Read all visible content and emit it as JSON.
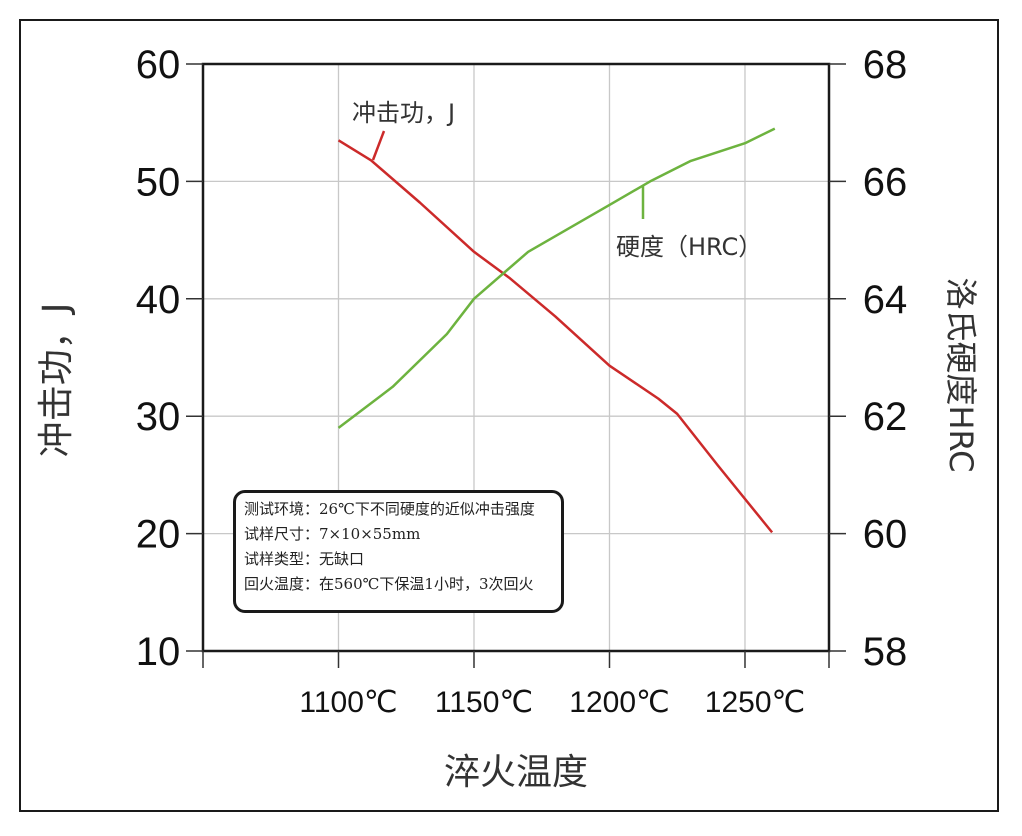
{
  "chart_data": {
    "type": "line",
    "title": "",
    "xlabel": "淬火温度",
    "ylabel_left": "冲击功，J",
    "ylabel_right": "洛氏硬度HRC",
    "x_ticks": [
      "1100℃",
      "1150℃",
      "1200℃",
      "1250℃"
    ],
    "x_tick_values": [
      1100,
      1150,
      1200,
      1250
    ],
    "xlim": [
      1050,
      1281
    ],
    "y_left_ticks": [
      "60",
      "50",
      "40",
      "30",
      "20",
      "10"
    ],
    "ylim_left": [
      10,
      60
    ],
    "y_right_ticks": [
      "68",
      "66",
      "64",
      "62",
      "60",
      "58"
    ],
    "ylim_right": [
      58,
      68
    ],
    "grid": true,
    "series": [
      {
        "name": "冲击功，J",
        "axis": "left",
        "color": "#cc2a2a",
        "x": [
          1100,
          1112,
          1130,
          1150,
          1163,
          1180,
          1200,
          1218,
          1225,
          1240,
          1260
        ],
        "values": [
          53.5,
          51.8,
          48.2,
          44.0,
          41.8,
          38.5,
          34.3,
          31.5,
          30.2,
          25.8,
          20.1
        ]
      },
      {
        "name": "硬度（HRC）",
        "axis": "right",
        "color": "#6db33f",
        "x": [
          1100,
          1120,
          1140,
          1150,
          1170,
          1200,
          1215,
          1230,
          1250,
          1261
        ],
        "values": [
          61.8,
          62.5,
          63.4,
          64.0,
          64.8,
          65.6,
          66.0,
          66.35,
          66.65,
          66.9
        ]
      }
    ],
    "annotations": [
      {
        "text": "冲击功，J",
        "target_series": "冲击功，J"
      },
      {
        "text": "硬度（HRC）",
        "target_series": "硬度（HRC）"
      }
    ],
    "legend_box": {
      "lines": [
        "测试环境：26℃下不同硬度的近似冲击强度",
        "试样尺寸：7×10×55mm",
        "试样类型：无缺口",
        "回火温度：在560℃下保温1小时，3次回火"
      ],
      "position": "lower-left inside plot"
    }
  },
  "labels": {
    "impact_annotation": "冲击功，J",
    "hardness_annotation": "硬度（HRC）",
    "x_axis_title": "淬火温度",
    "y_left_title": "冲击功，J",
    "y_right_title": "洛氏硬度HRC"
  },
  "colors": {
    "impact_line": "#cc2a2a",
    "hardness_line": "#6db33f",
    "grid": "#c8c8c8",
    "axis": "#1a1a1a"
  }
}
